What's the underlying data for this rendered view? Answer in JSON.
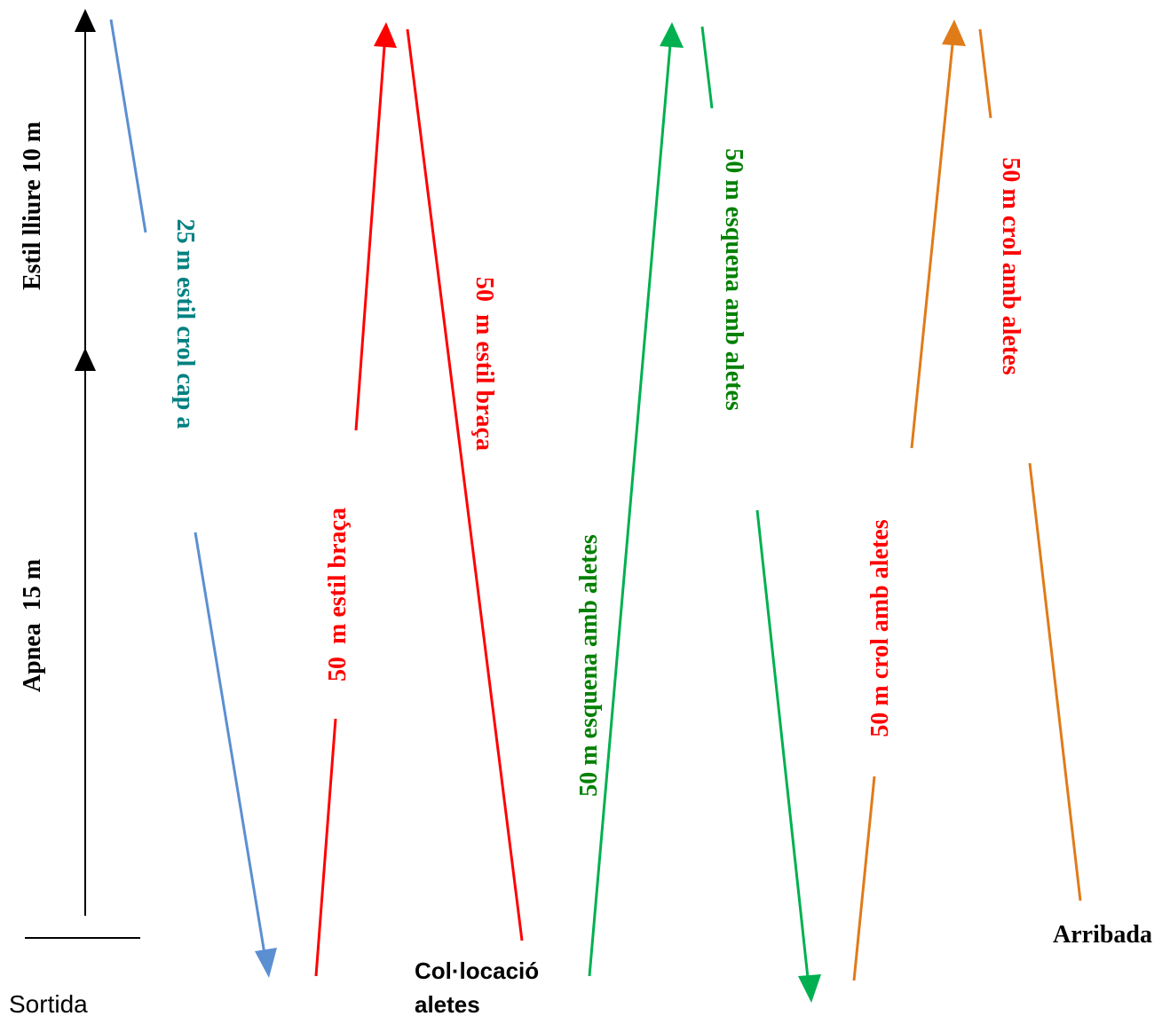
{
  "colors": {
    "black": "#000000",
    "blue": "#5b8fd2",
    "red": "#ff0000",
    "green": "#00b050",
    "dark_green": "#008000",
    "teal": "#008080",
    "orange": "#e07b1a"
  },
  "labels": {
    "start": "Sortida",
    "finish": "Arribada",
    "fins_line1": "Col·locació",
    "fins_line2": "aletes",
    "apnea": "Apnea  15 m",
    "freestyle": "Estil lliure 10 m",
    "crawl_head": "25 m estil crol cap a",
    "breast_up": "50  m estil braça",
    "breast_down": "50  m estil braça",
    "back_up": "50 m esquena amb aletes",
    "back_down": "50 m esquena amb aletes",
    "crawl_fins_up": "50 m crol amb aletes",
    "crawl_fins_down": "50 m crol amb aletes"
  }
}
